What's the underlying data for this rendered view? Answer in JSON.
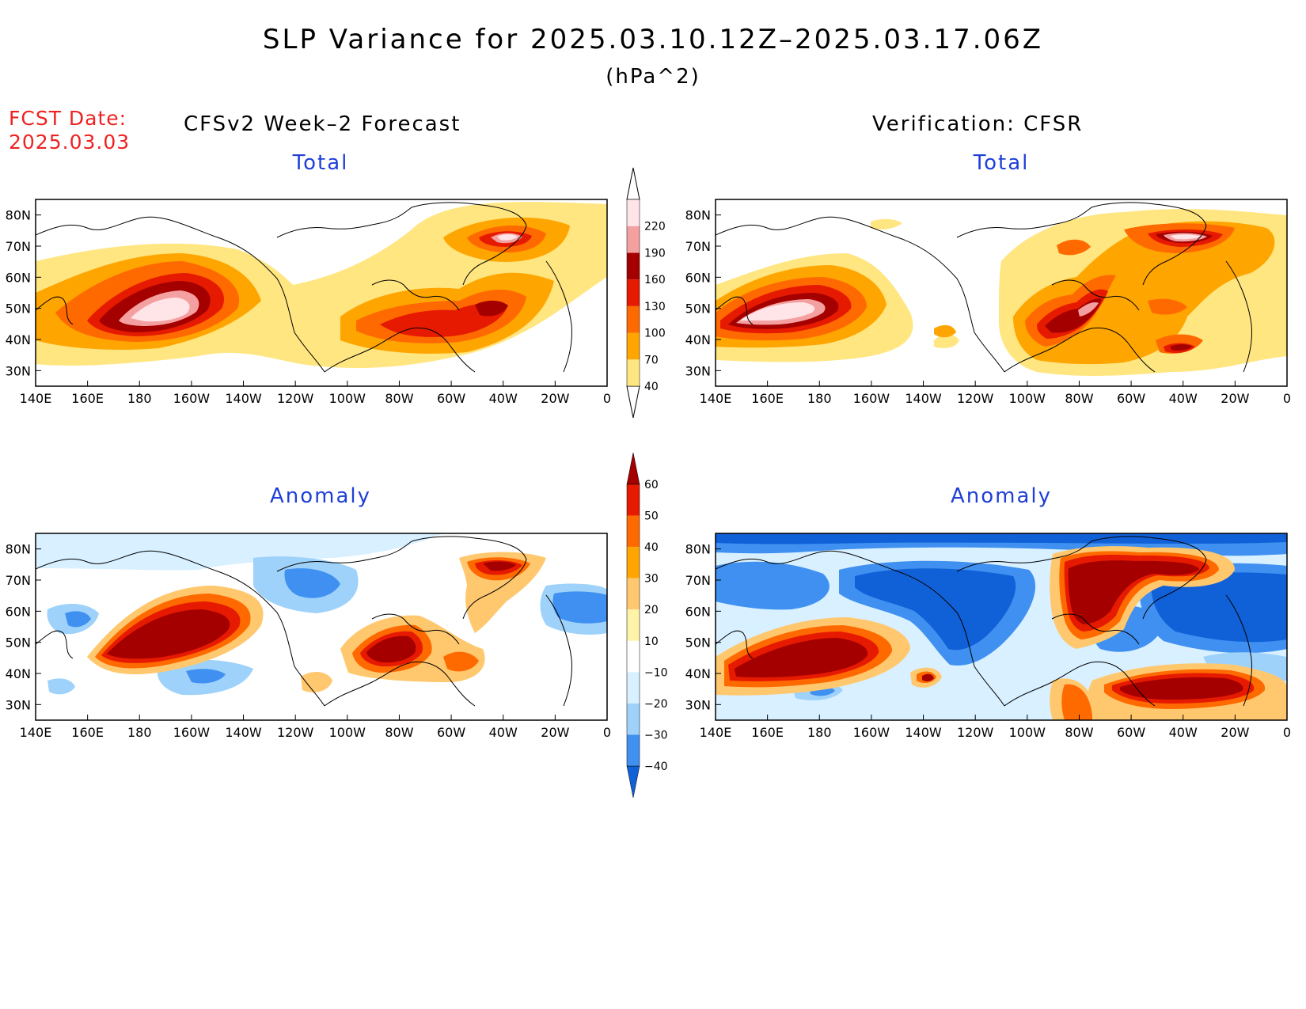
{
  "header": {
    "title": "SLP Variance for 2025.03.10.12Z–2025.03.17.06Z",
    "units": "(hPa^2)"
  },
  "fcst": {
    "label": "FCST Date:",
    "date": "2025.03.03"
  },
  "columns": {
    "left": "CFSv2 Week–2 Forecast",
    "right": "Verification: CFSR"
  },
  "panels": [
    {
      "label": "Total",
      "column": "forecast",
      "kind": "total"
    },
    {
      "label": "Total",
      "column": "verification",
      "kind": "total"
    },
    {
      "label": "Anomaly",
      "column": "forecast",
      "kind": "anomaly"
    },
    {
      "label": "Anomaly",
      "column": "verification",
      "kind": "anomaly"
    }
  ],
  "axes": {
    "lon_ticks": [
      "140E",
      "160E",
      "180",
      "160W",
      "140W",
      "120W",
      "100W",
      "80W",
      "60W",
      "40W",
      "20W",
      "0"
    ],
    "lat_ticks": [
      "80N",
      "70N",
      "60N",
      "50N",
      "40N",
      "30N"
    ]
  },
  "total_colorbar": {
    "levels": [
      "40",
      "70",
      "100",
      "130",
      "160",
      "190",
      "220"
    ],
    "colors": [
      "#ffe680",
      "#ffa500",
      "#ff6a00",
      "#e61a00",
      "#a50000",
      "#f5a0a0",
      "#ffe4e8"
    ]
  },
  "anomaly_colorbar": {
    "levels": [
      "60",
      "50",
      "40",
      "30",
      "20",
      "10",
      "−10",
      "−20",
      "−30",
      "−40"
    ],
    "colors": [
      "#a50000",
      "#e61a00",
      "#ff6a00",
      "#ffa500",
      "#ffc86e",
      "#fff3a8",
      "#ffffff",
      "#d8f0ff",
      "#9ed2fa",
      "#3f90f0",
      "#1060d8"
    ]
  }
}
